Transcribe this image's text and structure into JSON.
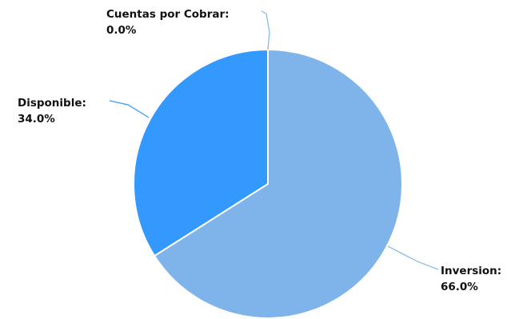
{
  "chart_data": {
    "type": "pie",
    "start_angle_deg": 0,
    "direction": "clockwise",
    "slices": [
      {
        "name": "Inversion",
        "value": 66.0,
        "label": "Inversion:",
        "percent_text": "66.0%",
        "color": "#7eb4ea"
      },
      {
        "name": "Disponible",
        "value": 34.0,
        "label": "Disponible:",
        "percent_text": "34.0%",
        "color": "#3399ff"
      },
      {
        "name": "Cuentas por Cobrar",
        "value": 0.0,
        "label": "Cuentas por Cobrar:",
        "percent_text": "0.0%",
        "color": "#7eb4ea"
      }
    ]
  }
}
